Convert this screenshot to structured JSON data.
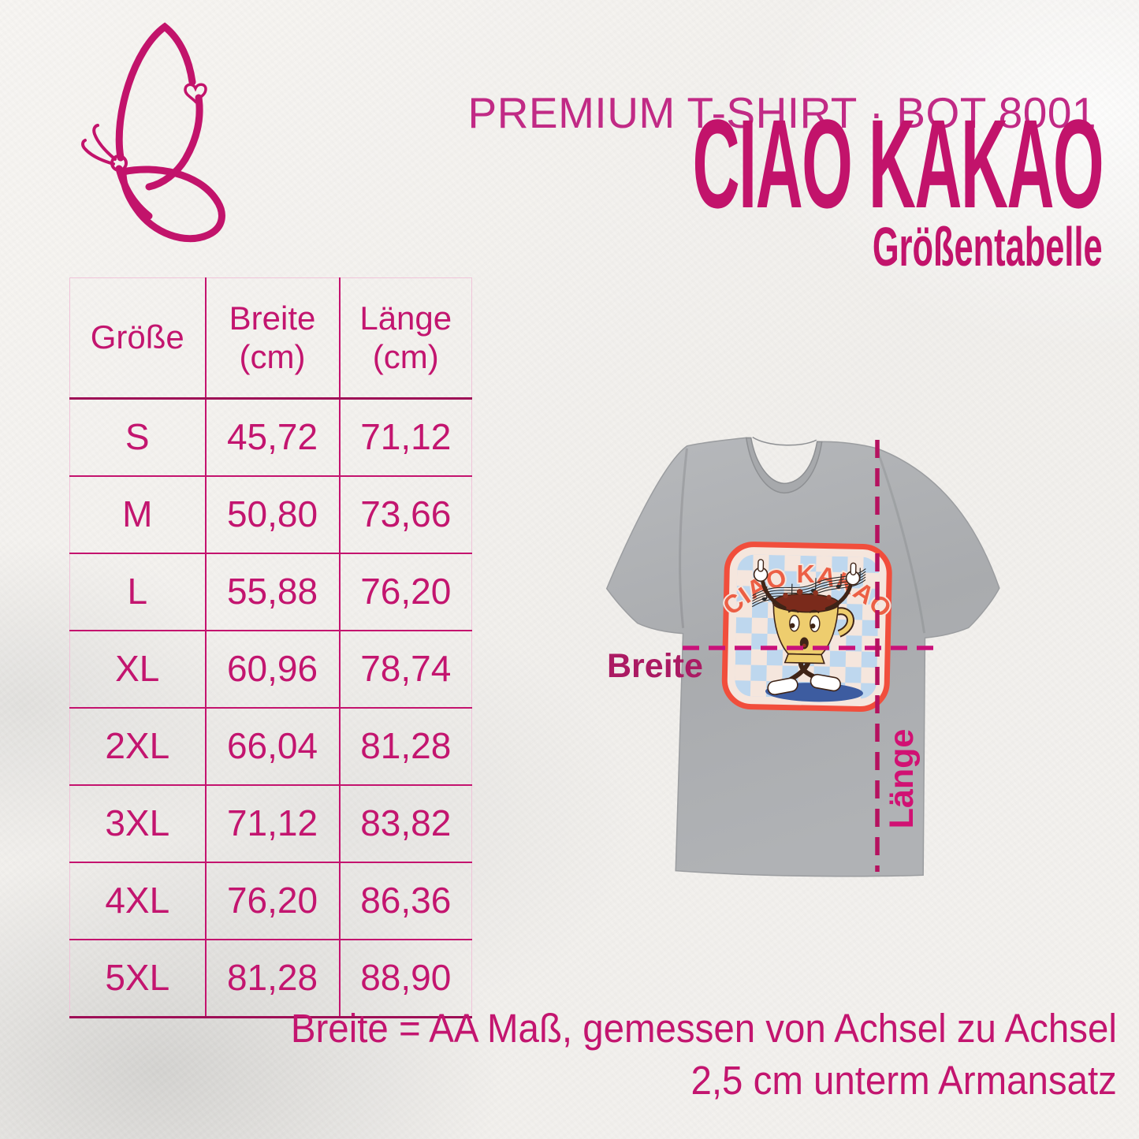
{
  "header": {
    "product_line": "PREMIUM T-SHIRT · BOT 8001",
    "title": "CIAO KAKAO",
    "subtitle": "Größentabelle"
  },
  "size_table": {
    "columns": [
      "Größe",
      "Breite (cm)",
      "Länge (cm)"
    ],
    "rows": [
      [
        "S",
        "45,72",
        "71,12"
      ],
      [
        "M",
        "50,80",
        "73,66"
      ],
      [
        "L",
        "55,88",
        "76,20"
      ],
      [
        "XL",
        "60,96",
        "78,74"
      ],
      [
        "2XL",
        "66,04",
        "81,28"
      ],
      [
        "3XL",
        "71,12",
        "83,82"
      ],
      [
        "4XL",
        "76,20",
        "86,36"
      ],
      [
        "5XL",
        "81,28",
        "88,90"
      ]
    ]
  },
  "shirt": {
    "print_title": "CIAO KAKAO",
    "width_label": "Breite",
    "length_label": "Länge"
  },
  "footnote": {
    "line1": "Breite = AA Maß, gemessen von Achsel zu Achsel",
    "line2": "2,5 cm unterm Armansatz"
  },
  "colors": {
    "brand_magenta": "#C2136B",
    "table_text": "#C3156F",
    "table_heavy_border": "#9E0F56",
    "width_line": "#C9117A",
    "length_line": "#B5125F",
    "shirt_gray": "#ABADB0",
    "print_border": "#F14E3C",
    "checker_blue": "#BED7EE",
    "checker_blush": "#F5E6DD",
    "mug_yellow": "#EECD6E",
    "cocoa_brown": "#7A2A1B",
    "shadow_blue": "#3D5CA0"
  }
}
